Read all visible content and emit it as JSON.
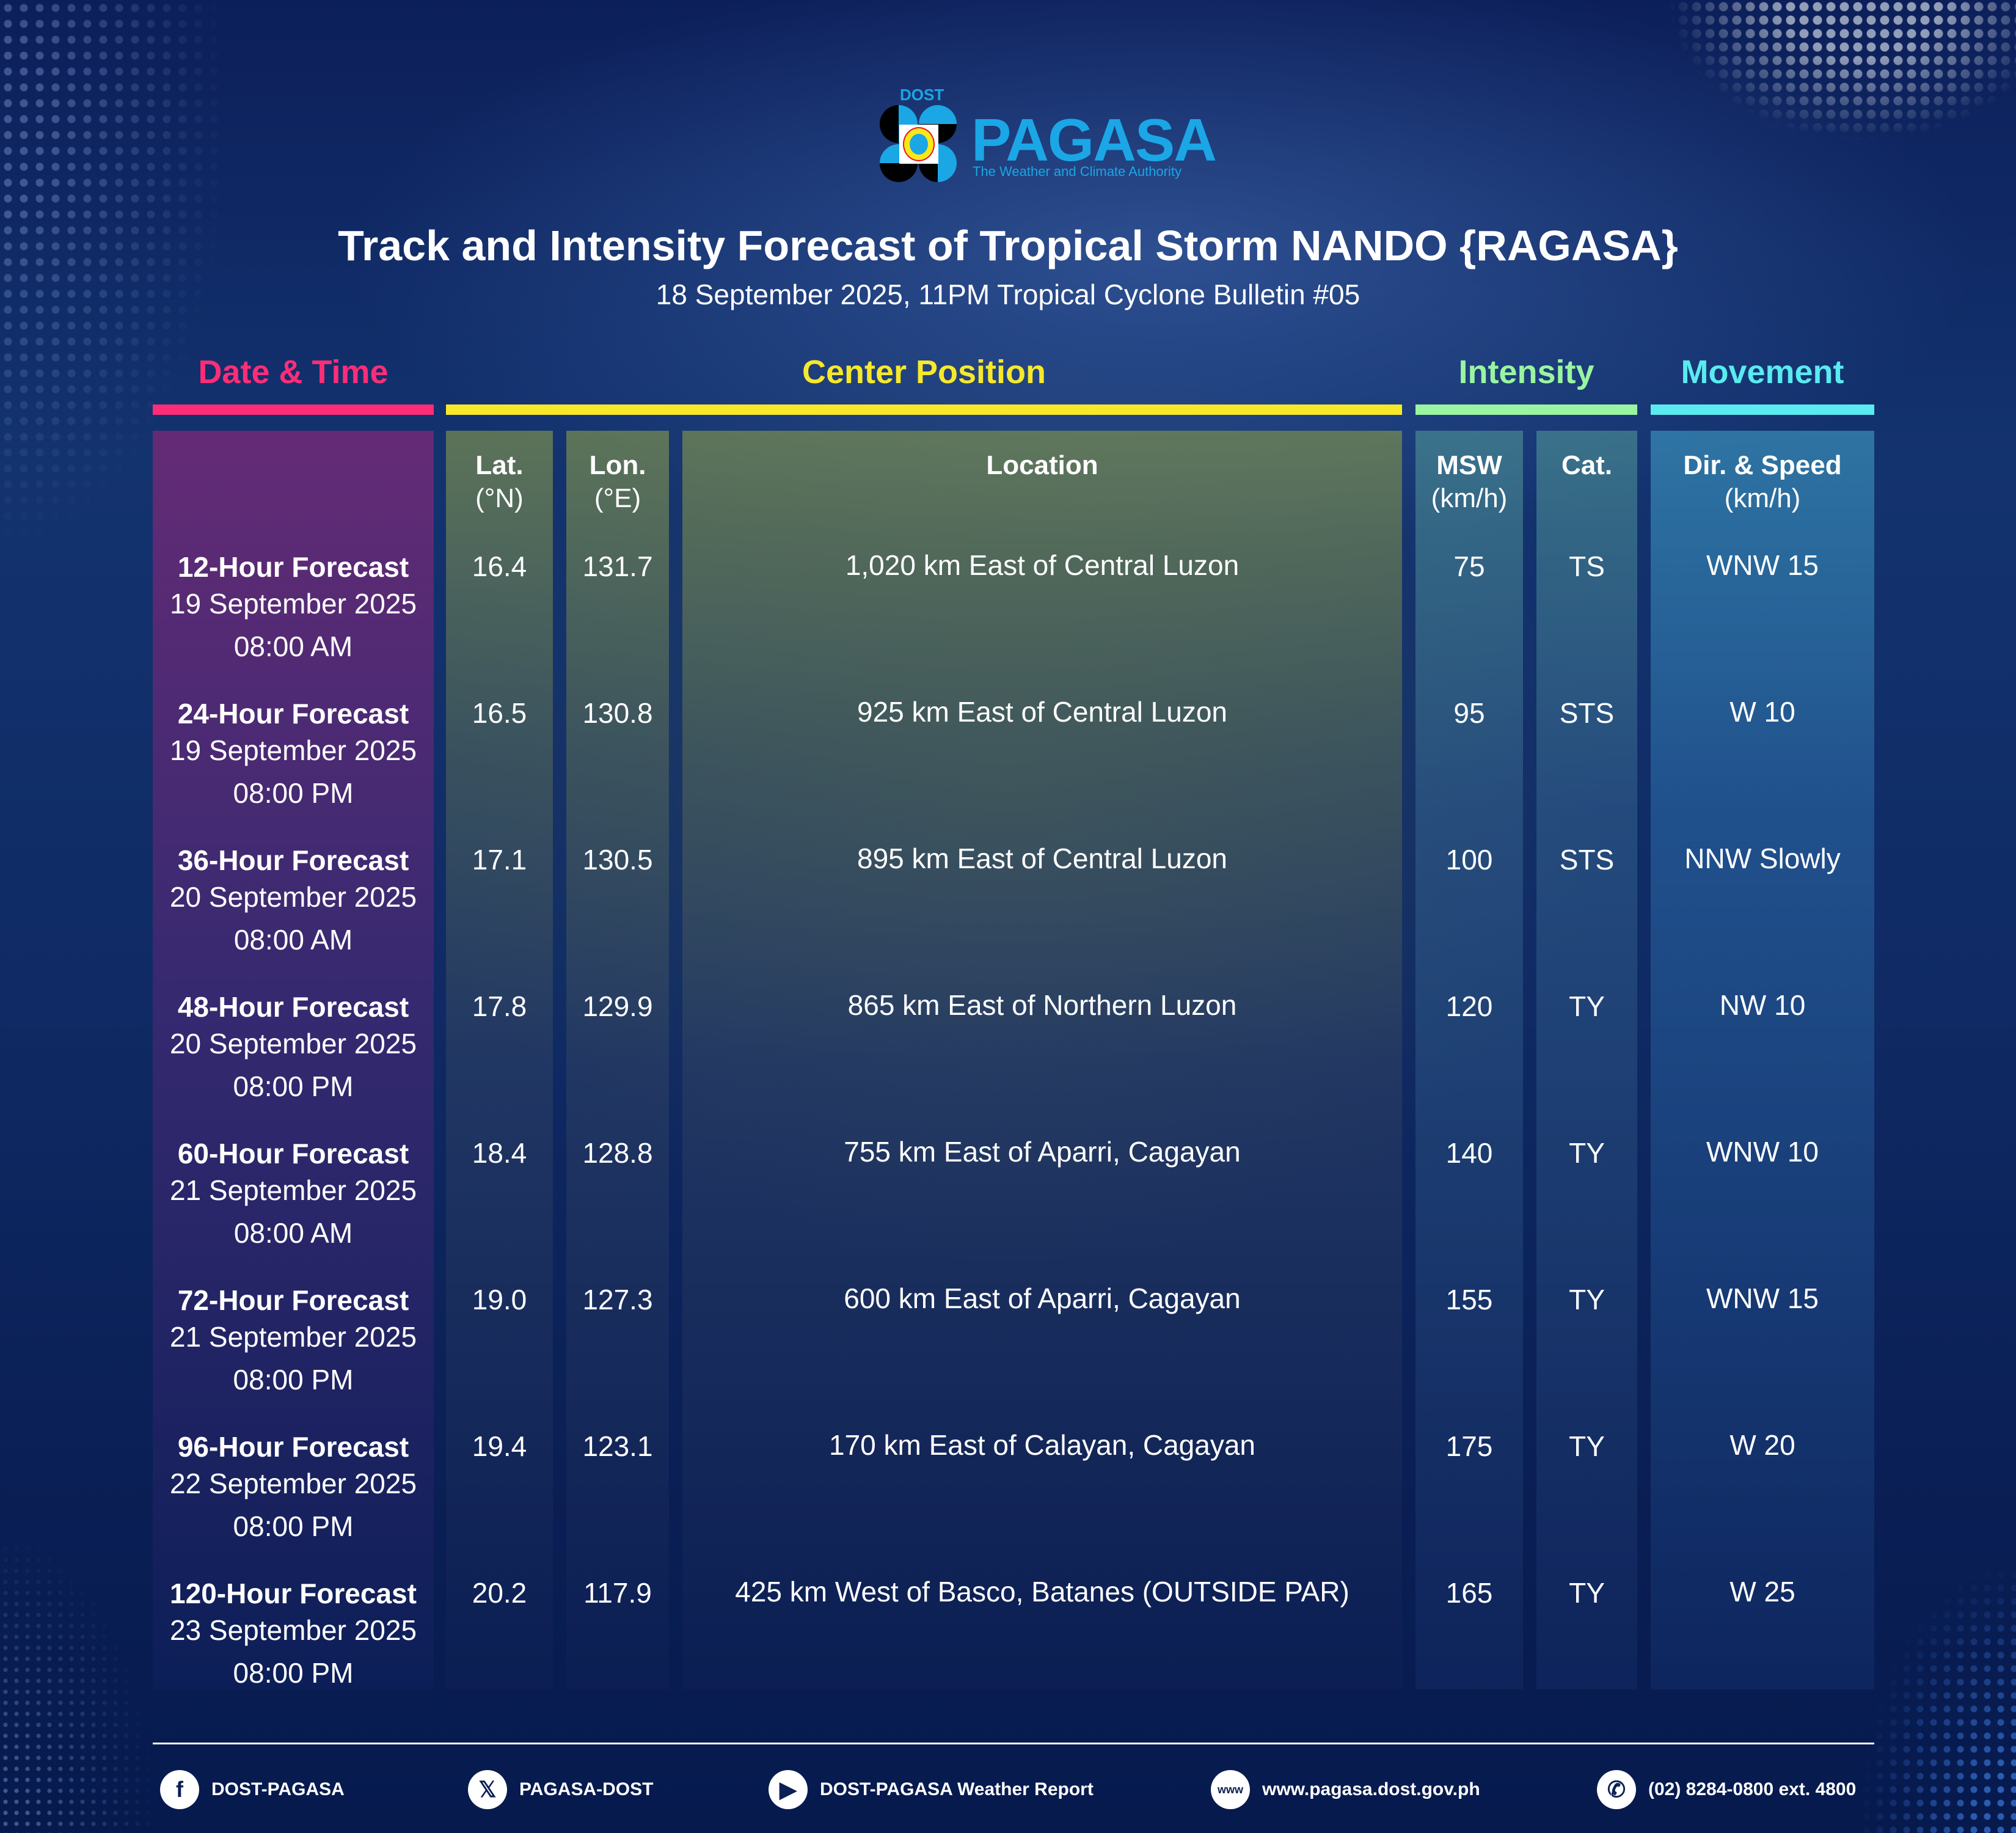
{
  "logo": {
    "dost": "DOST",
    "name": "PAGASA",
    "tagline": "The Weather and Climate Authority"
  },
  "header": {
    "title": "Track and Intensity Forecast of Tropical Storm NANDO {RAGASA}",
    "subtitle": "18 September 2025, 11PM Tropical Cyclone Bulletin #05"
  },
  "groups": {
    "date_time": {
      "label": "Date & Time",
      "color": "#ff2d78"
    },
    "center_position": {
      "label": "Center Position",
      "color": "#f7e82a"
    },
    "intensity": {
      "label": "Intensity",
      "color": "#9af5a0"
    },
    "movement": {
      "label": "Movement",
      "color": "#5aeaf0"
    }
  },
  "columns": {
    "lat": {
      "label": "Lat.",
      "unit": "(°N)"
    },
    "lon": {
      "label": "Lon.",
      "unit": "(°E)"
    },
    "location": {
      "label": "Location",
      "unit": ""
    },
    "msw": {
      "label": "MSW",
      "unit": "(km/h)"
    },
    "cat": {
      "label": "Cat.",
      "unit": ""
    },
    "movement": {
      "label": "Dir. & Speed",
      "unit": "(km/h)"
    }
  },
  "rows": [
    {
      "forecast": "12-Hour Forecast",
      "date": "19 September 2025",
      "time": "08:00 AM",
      "lat": "16.4",
      "lon": "131.7",
      "location": "1,020 km East of Central Luzon",
      "msw": "75",
      "cat": "TS",
      "movement": "WNW 15"
    },
    {
      "forecast": "24-Hour Forecast",
      "date": "19 September 2025",
      "time": "08:00 PM",
      "lat": "16.5",
      "lon": "130.8",
      "location": "925 km East of Central Luzon",
      "msw": "95",
      "cat": "STS",
      "movement": "W 10"
    },
    {
      "forecast": "36-Hour Forecast",
      "date": "20 September 2025",
      "time": "08:00 AM",
      "lat": "17.1",
      "lon": "130.5",
      "location": "895 km East of Central Luzon",
      "msw": "100",
      "cat": "STS",
      "movement": "NNW Slowly"
    },
    {
      "forecast": "48-Hour Forecast",
      "date": "20 September 2025",
      "time": "08:00 PM",
      "lat": "17.8",
      "lon": "129.9",
      "location": "865 km East of Northern Luzon",
      "msw": "120",
      "cat": "TY",
      "movement": "NW 10"
    },
    {
      "forecast": "60-Hour Forecast",
      "date": "21 September 2025",
      "time": "08:00 AM",
      "lat": "18.4",
      "lon": "128.8",
      "location": "755 km East of Aparri, Cagayan",
      "msw": "140",
      "cat": "TY",
      "movement": "WNW 10"
    },
    {
      "forecast": "72-Hour Forecast",
      "date": "21 September 2025",
      "time": "08:00 PM",
      "lat": "19.0",
      "lon": "127.3",
      "location": "600 km East of Aparri, Cagayan",
      "msw": "155",
      "cat": "TY",
      "movement": "WNW 15"
    },
    {
      "forecast": "96-Hour Forecast",
      "date": "22 September 2025",
      "time": "08:00 PM",
      "lat": "19.4",
      "lon": "123.1",
      "location": "170 km East of Calayan, Cagayan",
      "msw": "175",
      "cat": "TY",
      "movement": "W 20"
    },
    {
      "forecast": "120-Hour Forecast",
      "date": "23 September 2025",
      "time": "08:00 PM",
      "lat": "20.2",
      "lon": "117.9",
      "location": "425 km West of Basco, Batanes (OUTSIDE PAR)",
      "msw": "165",
      "cat": "TY",
      "movement": "W 25"
    }
  ],
  "footer": [
    {
      "icon": "facebook-icon",
      "glyph": "f",
      "label": "DOST-PAGASA"
    },
    {
      "icon": "x-twitter-icon",
      "glyph": "𝕏",
      "label": "PAGASA-DOST"
    },
    {
      "icon": "youtube-icon",
      "glyph": "▶",
      "label": "DOST-PAGASA Weather Report"
    },
    {
      "icon": "globe-www-icon",
      "glyph": "www",
      "label": "www.pagasa.dost.gov.ph"
    },
    {
      "icon": "phone-icon",
      "glyph": "✆",
      "label": "(02) 8284-0800 ext. 4800"
    }
  ]
}
